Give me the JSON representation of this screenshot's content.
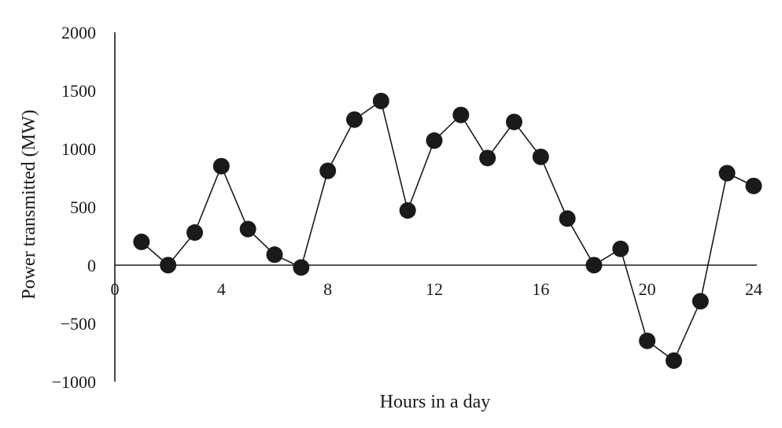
{
  "chart_data": {
    "type": "line",
    "title": "",
    "xlabel": "Hours in a day",
    "ylabel": "Power transmitted (MW)",
    "xlim": [
      0,
      24
    ],
    "ylim": [
      -1000,
      2000
    ],
    "x_ticks": [
      0,
      4,
      8,
      12,
      16,
      20,
      24
    ],
    "y_ticks": [
      -1000,
      -500,
      0,
      500,
      1000,
      1500,
      2000
    ],
    "y_tick_labels": [
      "−1000",
      "−500",
      "0",
      "500",
      "1000",
      "1500",
      "2000"
    ],
    "grid": false,
    "legend": "none",
    "marker": "filled-circle",
    "colors": {
      "series": "#1a1a1a",
      "axis": "#1a1a1a"
    },
    "series": [
      {
        "x": [
          1,
          2,
          3,
          4,
          5,
          6,
          7,
          8,
          9,
          10,
          11,
          12,
          13,
          14,
          15,
          16,
          17,
          18,
          19,
          20,
          21,
          22,
          23,
          24
        ],
        "values": [
          200,
          0,
          280,
          850,
          310,
          90,
          -20,
          810,
          1250,
          1410,
          470,
          1070,
          1290,
          920,
          1230,
          930,
          400,
          0,
          140,
          -650,
          -820,
          -310,
          790,
          680
        ]
      }
    ]
  }
}
